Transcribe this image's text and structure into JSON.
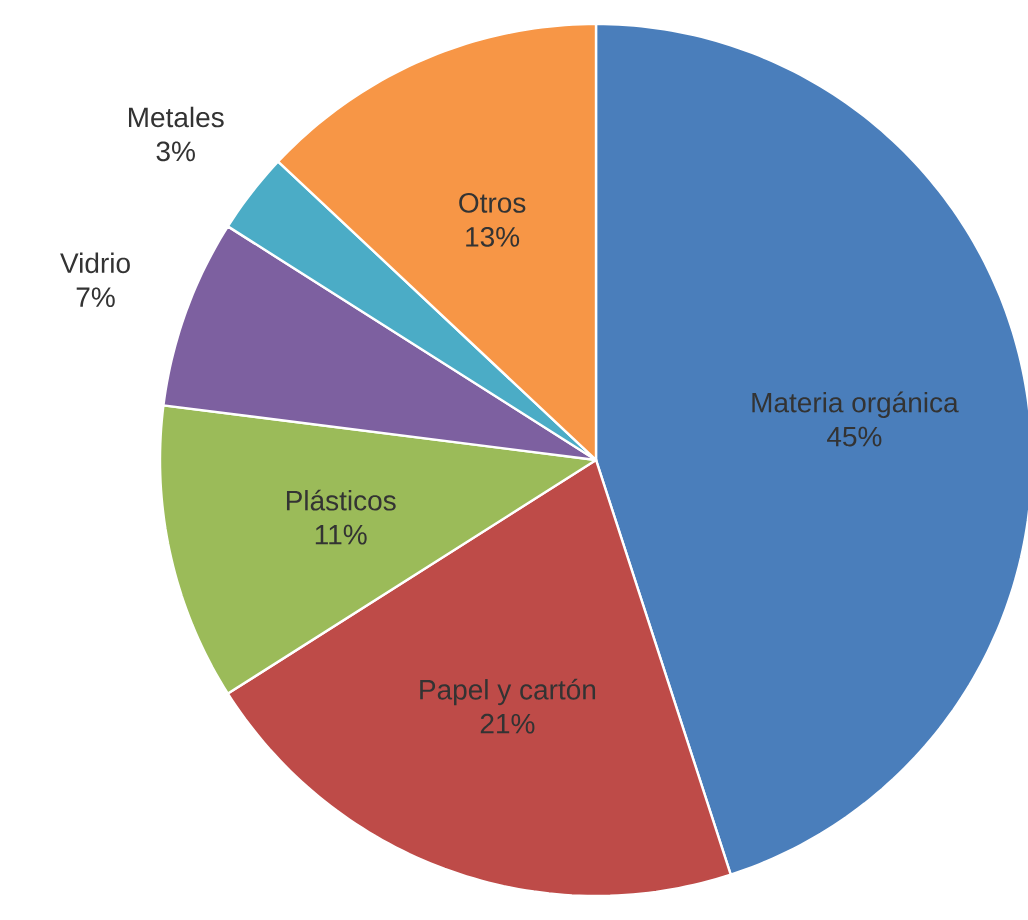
{
  "chart_data": {
    "type": "pie",
    "categories": [
      "Materia orgánica",
      "Papel y cartón",
      "Plásticos",
      "Vidrio",
      "Metales",
      "Otros"
    ],
    "values": [
      45,
      21,
      11,
      7,
      3,
      13
    ],
    "colors": [
      "#4a7ebb",
      "#be4b48",
      "#9bbb59",
      "#7d60a0",
      "#4bacc6",
      "#f79646"
    ],
    "value_labels": [
      "45%",
      "21%",
      "11%",
      "7%",
      "3%",
      "13%"
    ]
  }
}
